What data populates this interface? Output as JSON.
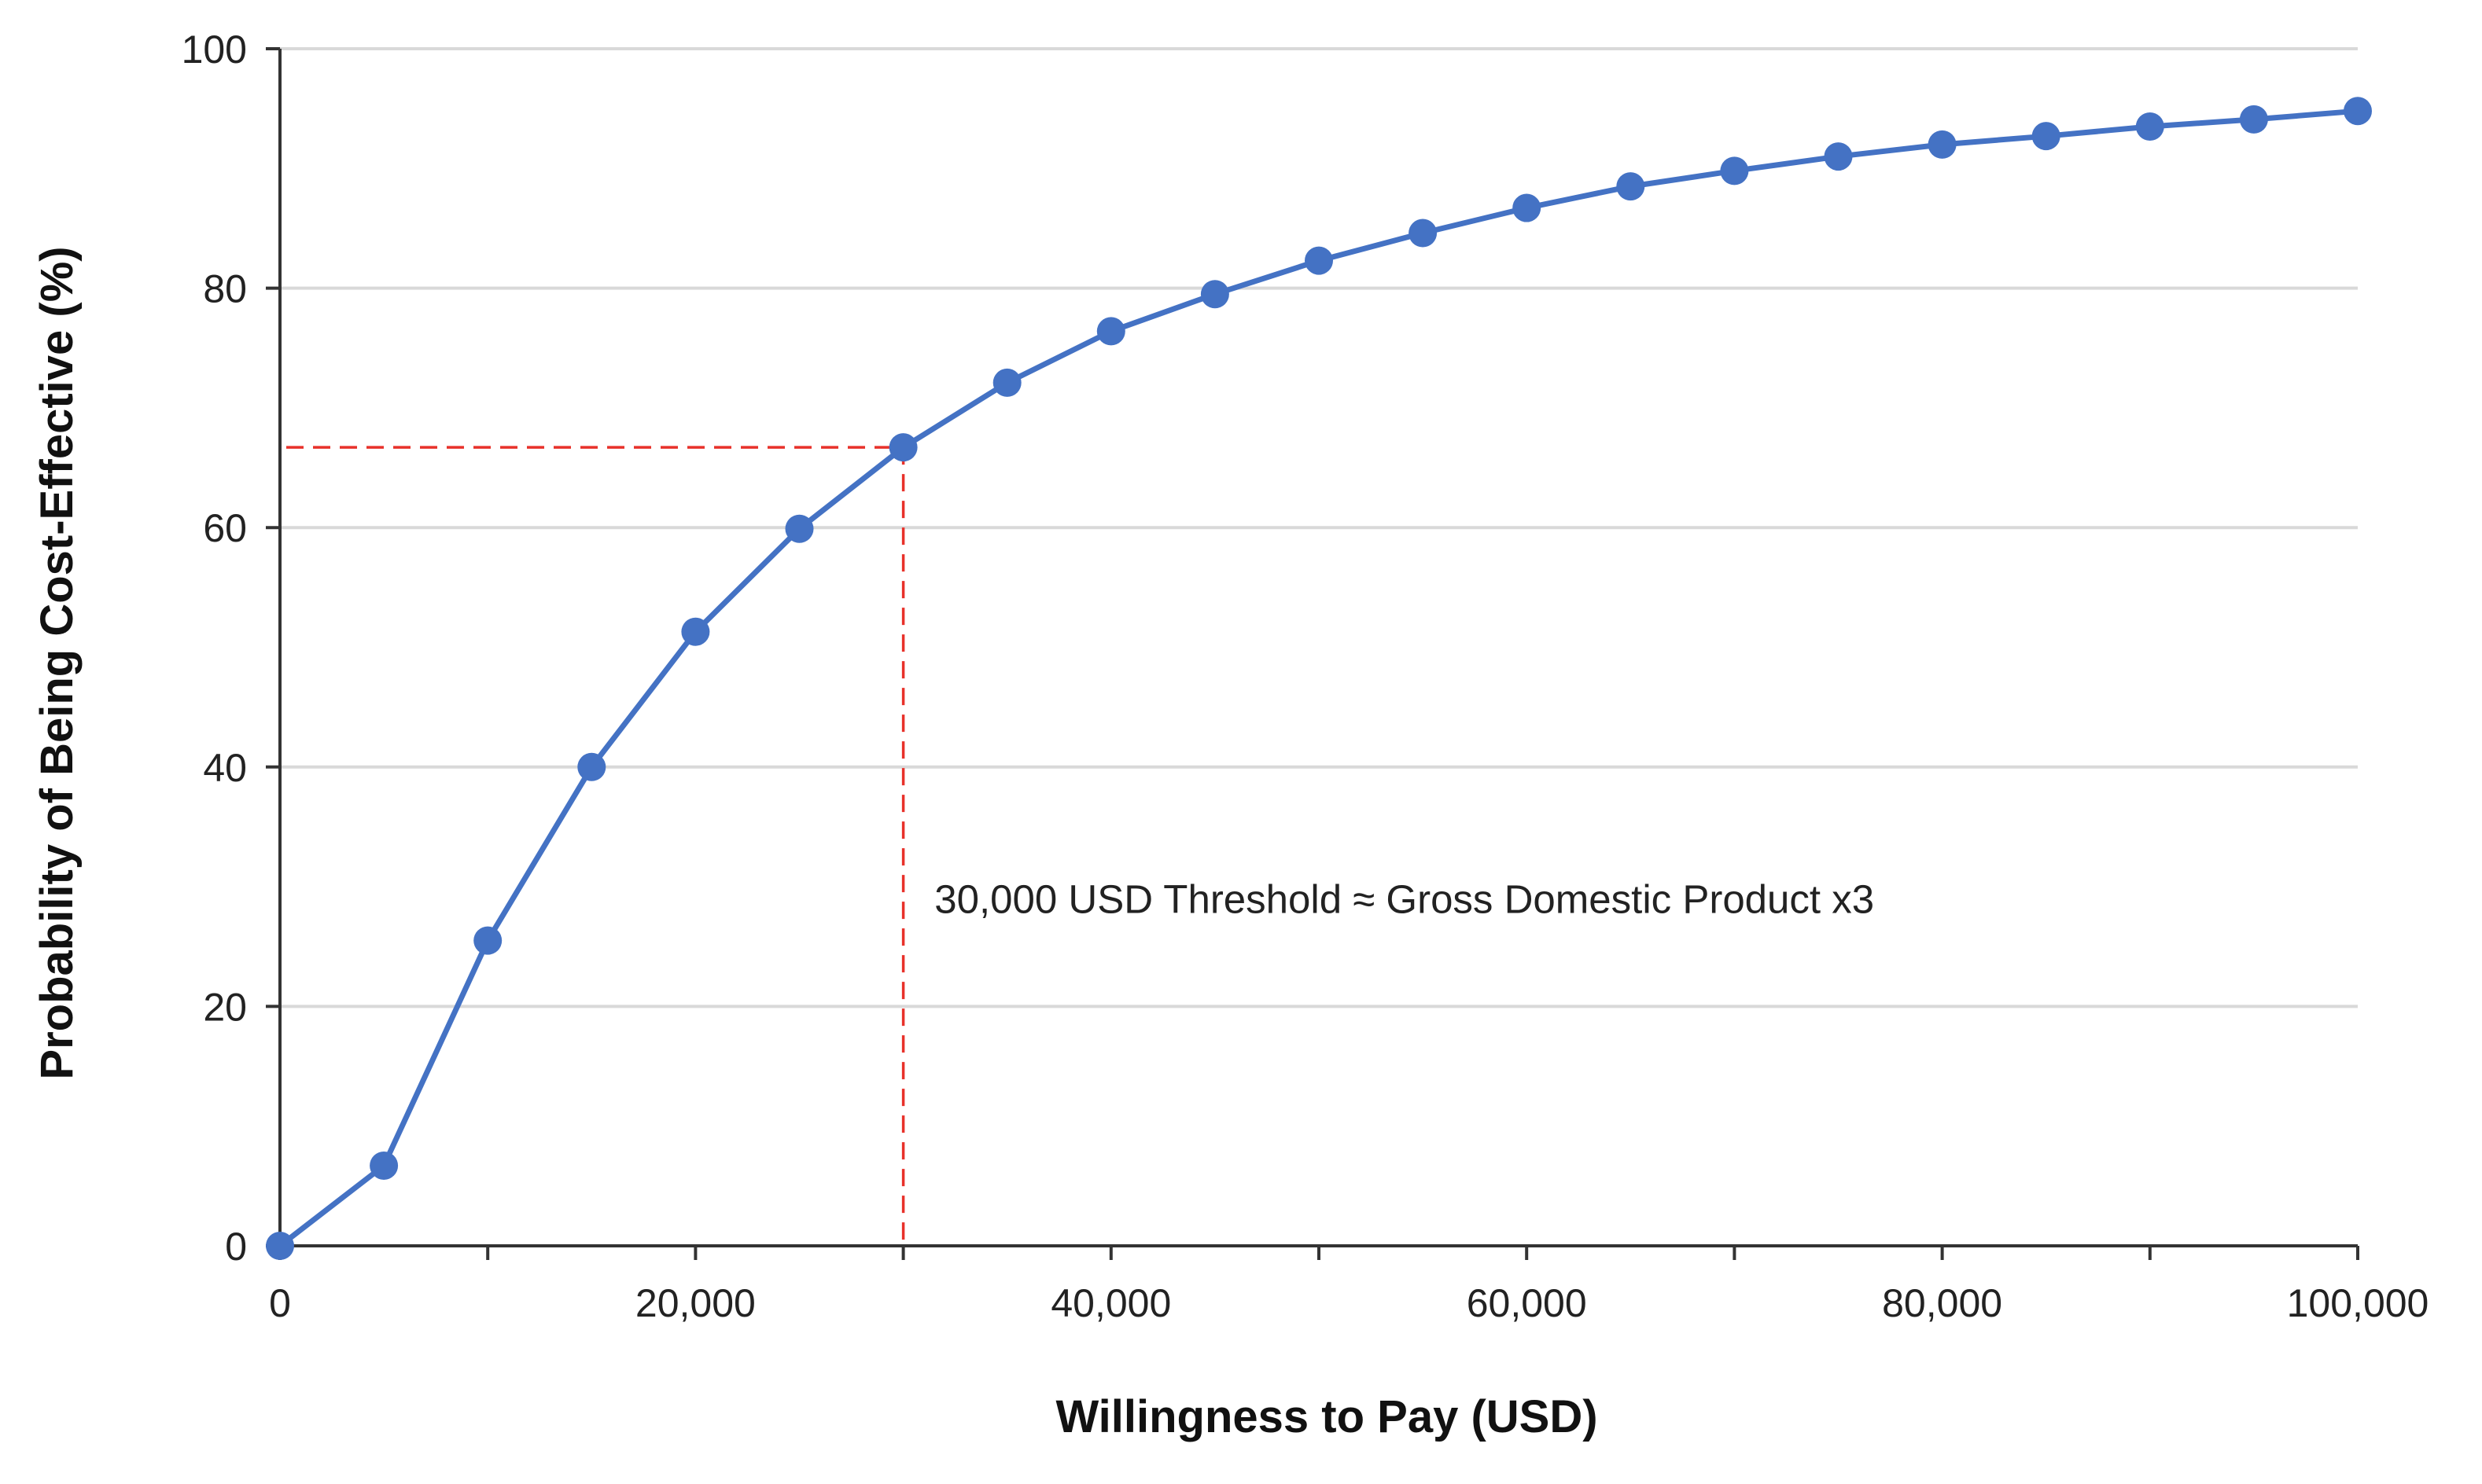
{
  "chart_data": {
    "type": "line",
    "title": "",
    "xlabel": "Willingness to Pay (USD)",
    "ylabel": "Probability of Being Cost-Effective (%)",
    "xlim": [
      0,
      100000
    ],
    "ylim": [
      0,
      100
    ],
    "x_ticks": [
      0,
      20000,
      40000,
      60000,
      80000,
      100000
    ],
    "x_tick_labels": [
      "0",
      "20,000",
      "40,000",
      "60,000",
      "80,000",
      "100,000"
    ],
    "y_ticks": [
      0,
      20,
      40,
      60,
      80,
      100
    ],
    "y_tick_labels": [
      "0",
      "20",
      "40",
      "60",
      "80",
      "100"
    ],
    "grid": "horizontal",
    "legend": "none",
    "series": [
      {
        "color": "#4472C4",
        "x": [
          0,
          5000,
          10000,
          15000,
          20000,
          25000,
          30000,
          35000,
          40000,
          45000,
          50000,
          55000,
          60000,
          65000,
          70000,
          75000,
          80000,
          85000,
          90000,
          95000,
          100000
        ],
        "y": [
          0,
          6.7,
          25.5,
          40.0,
          51.3,
          59.9,
          66.7,
          72.1,
          76.4,
          79.5,
          82.3,
          84.6,
          86.7,
          88.5,
          89.8,
          91.0,
          92.0,
          92.7,
          93.5,
          94.1,
          94.8
        ]
      }
    ],
    "reference_lines": {
      "x": 30000,
      "y": 66.7,
      "color": "#E8312A",
      "style": "dashed"
    },
    "annotation": {
      "text": "30,000 USD Threshold ≈ Gross Domestic Product x3",
      "x": 31500,
      "y": 29
    },
    "colors": {
      "series": "#4472C4",
      "reference": "#E8312A",
      "grid": "#D9D9D9",
      "axis": "#333333"
    }
  }
}
